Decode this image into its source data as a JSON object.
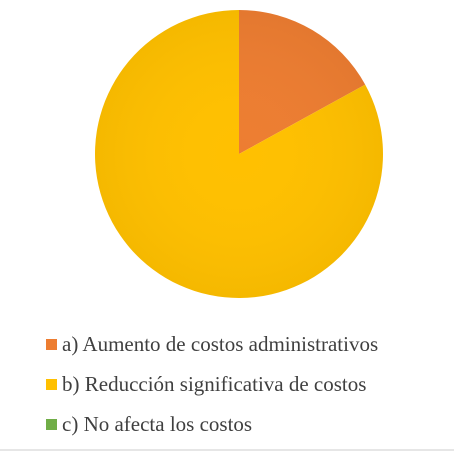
{
  "chart_data": {
    "type": "pie",
    "title": "",
    "slices": [
      {
        "label": "a) Aumento de costos administrativos",
        "value": 17,
        "color": "#ed7d31"
      },
      {
        "label": "b) Reducción significativa de costos",
        "value": 83,
        "color": "#ffc000"
      },
      {
        "label": "c) No afecta los costos",
        "value": 0,
        "color": "#70ad47"
      }
    ],
    "legend_position": "bottom"
  }
}
